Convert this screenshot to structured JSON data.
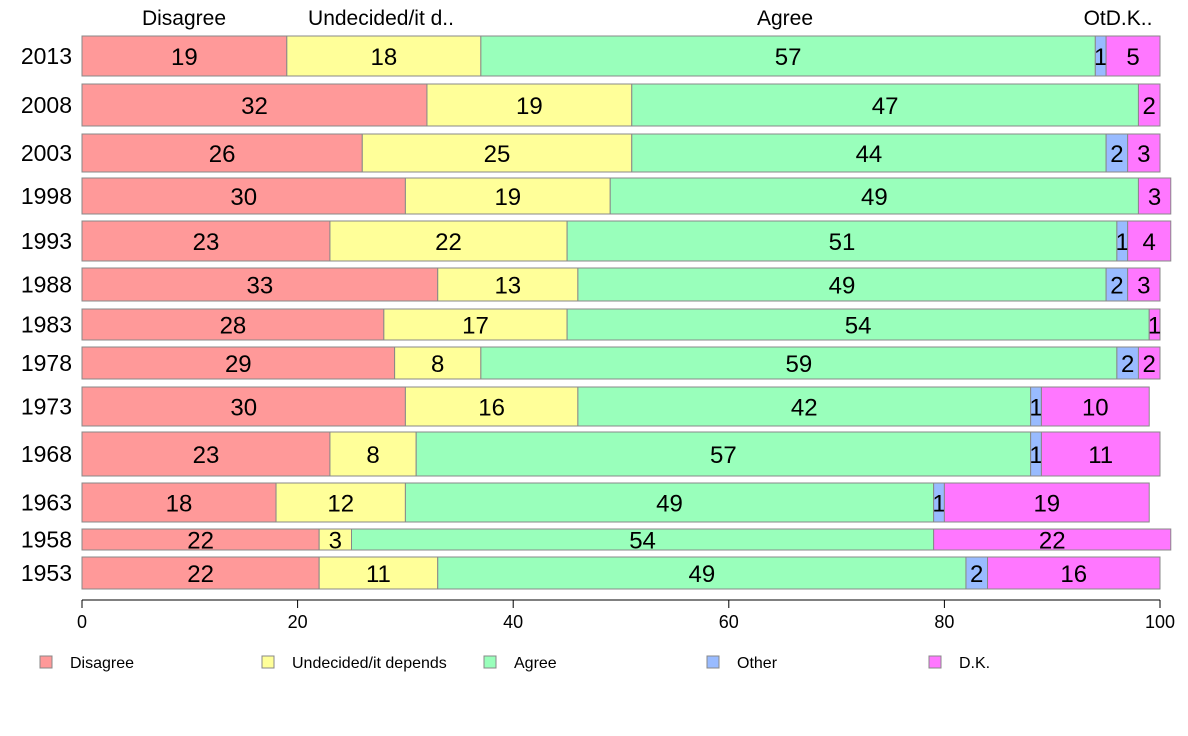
{
  "chart_data": {
    "type": "bar",
    "orientation": "horizontal",
    "stacked": true,
    "categories": [
      "2013",
      "2008",
      "2003",
      "1998",
      "1993",
      "1988",
      "1983",
      "1978",
      "1973",
      "1968",
      "1963",
      "1958",
      "1953"
    ],
    "series": [
      {
        "name": "Disagree",
        "color": "#ff9999",
        "values": [
          19,
          32,
          26,
          30,
          23,
          33,
          28,
          29,
          30,
          23,
          18,
          22,
          22
        ]
      },
      {
        "name": "Undecided/it depends",
        "color": "#ffff99",
        "values": [
          18,
          19,
          25,
          19,
          22,
          13,
          17,
          8,
          16,
          8,
          12,
          3,
          11
        ]
      },
      {
        "name": "Agree",
        "color": "#99ffbb",
        "values": [
          57,
          47,
          44,
          49,
          51,
          49,
          54,
          59,
          42,
          57,
          49,
          54,
          49
        ]
      },
      {
        "name": "Other",
        "color": "#99bbff",
        "values": [
          1,
          0,
          2,
          0,
          1,
          2,
          0,
          2,
          1,
          1,
          1,
          0,
          2
        ]
      },
      {
        "name": "D.K.",
        "color": "#ff77ff",
        "values": [
          5,
          2,
          3,
          3,
          4,
          3,
          1,
          2,
          10,
          11,
          19,
          22,
          16
        ]
      }
    ],
    "top_labels": [
      "Disagree",
      "Undecided/it d..",
      "Agree",
      "OtD.K.."
    ],
    "xlim": [
      0,
      100
    ],
    "xticks": [
      0,
      20,
      40,
      60,
      80,
      100
    ],
    "grid": false,
    "legend_position": "bottom"
  }
}
